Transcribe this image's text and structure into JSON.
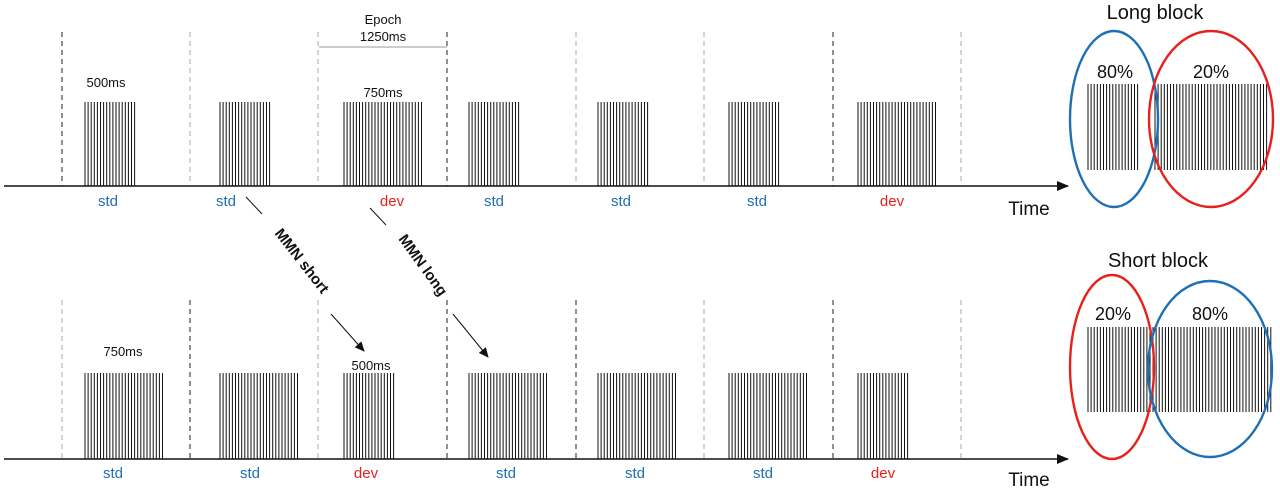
{
  "colors": {
    "std": "#1f6fb5",
    "dev": "#e8201c",
    "ink": "#111111",
    "dash_dark": "#222222",
    "dash_light": "#aaaaaa",
    "epoch_line": "#999999"
  },
  "axis_label": "Time",
  "annotations": {
    "epoch_title": "Epoch",
    "epoch_duration": "1250ms",
    "mmn_short": "MMN short",
    "mmn_long": "MMN long"
  },
  "long_sequence": {
    "duration_labels": [
      "500ms",
      "750ms"
    ],
    "trials": [
      {
        "label": "std",
        "kind": "std",
        "tone_ms": 500
      },
      {
        "label": "std",
        "kind": "std",
        "tone_ms": 500
      },
      {
        "label": "dev",
        "kind": "dev",
        "tone_ms": 750
      },
      {
        "label": "std",
        "kind": "std",
        "tone_ms": 500
      },
      {
        "label": "std",
        "kind": "std",
        "tone_ms": 500
      },
      {
        "label": "std",
        "kind": "std",
        "tone_ms": 500
      },
      {
        "label": "dev",
        "kind": "dev",
        "tone_ms": 750
      }
    ]
  },
  "short_sequence": {
    "duration_labels": [
      "750ms",
      "500ms"
    ],
    "trials": [
      {
        "label": "std",
        "kind": "std",
        "tone_ms": 750
      },
      {
        "label": "std",
        "kind": "std",
        "tone_ms": 750
      },
      {
        "label": "dev",
        "kind": "dev",
        "tone_ms": 500
      },
      {
        "label": "std",
        "kind": "std",
        "tone_ms": 750
      },
      {
        "label": "std",
        "kind": "std",
        "tone_ms": 750
      },
      {
        "label": "std",
        "kind": "std",
        "tone_ms": 750
      },
      {
        "label": "dev",
        "kind": "dev",
        "tone_ms": 500
      }
    ]
  },
  "blocks": [
    {
      "title": "Long block",
      "left_percent": "80%",
      "right_percent": "20%"
    },
    {
      "title": "Short block",
      "left_percent": "20%",
      "right_percent": "80%"
    }
  ]
}
